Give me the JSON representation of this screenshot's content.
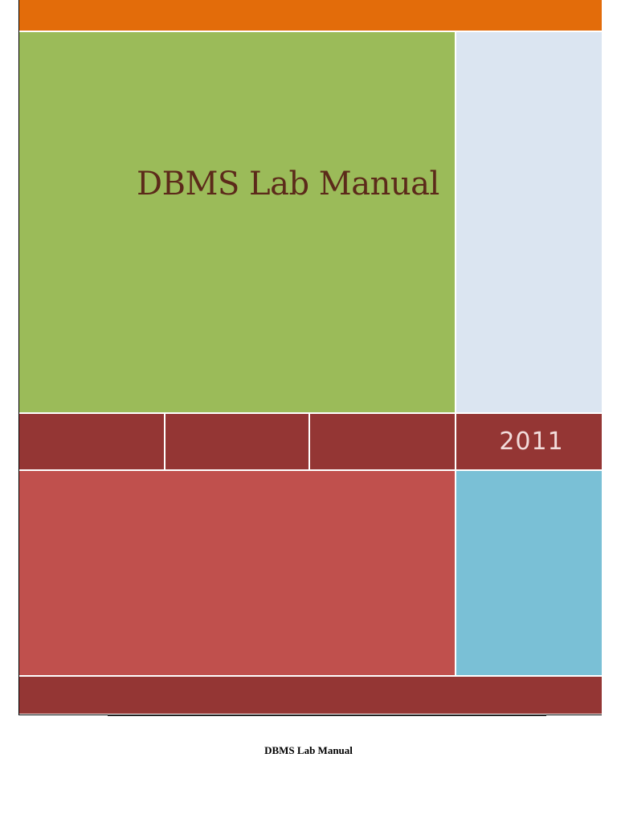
{
  "cover": {
    "title": "DBMS Lab Manual",
    "year": "2011"
  },
  "footer": {
    "text": "DBMS Lab Manual"
  },
  "colors": {
    "top_band": "#e36c0a",
    "title_block": "#9bbb59",
    "title_text": "#5c2a1a",
    "side_panel": "#dbe5f1",
    "dark_red": "#943634",
    "year_text": "#f2dcdb",
    "lower_block": "#c0504d",
    "lower_side": "#7ac0d6"
  }
}
